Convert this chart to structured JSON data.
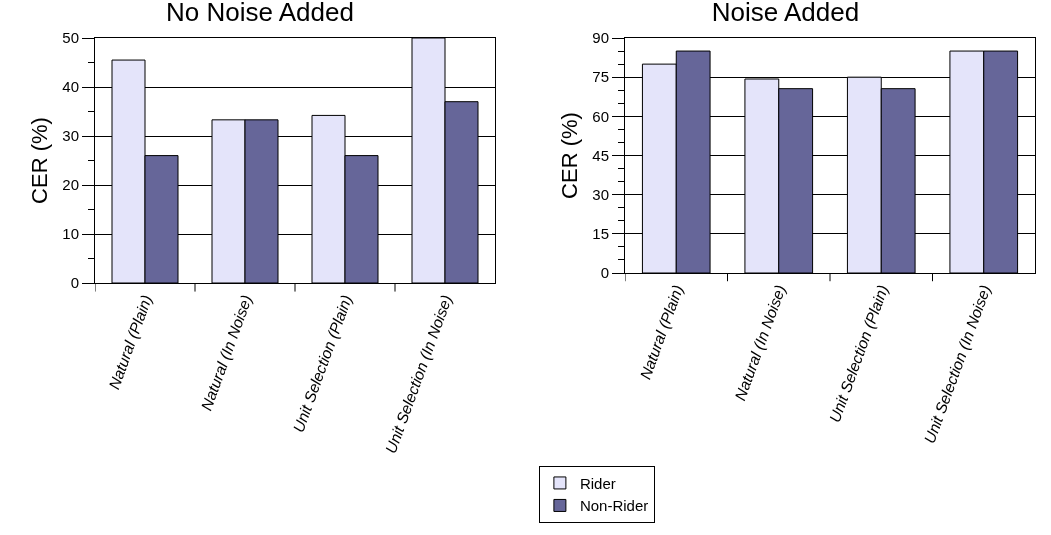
{
  "chart_data": [
    {
      "type": "bar",
      "title": "No Noise Added",
      "ylabel": "CER (%)",
      "categories": [
        "Natural (Plain)",
        "Natural (In Noise)",
        "Unit Selection (Plain)",
        "Unit Selection (In Noise)"
      ],
      "series": [
        {
          "color": "#e4e4fa",
          "values": [
            45.5,
            33.3,
            34.2,
            50
          ]
        },
        {
          "color": "#666699",
          "values": [
            26,
            33.3,
            26,
            37
          ]
        }
      ],
      "ylim": [
        0,
        50
      ],
      "yticks": [
        0,
        {
          "value": 5,
          "label": null
        },
        10,
        {
          "value": 15,
          "label": null
        },
        20,
        {
          "value": 25,
          "label": null
        },
        30,
        {
          "value": 35,
          "label": null
        },
        40,
        {
          "value": 45,
          "label": null
        },
        50
      ],
      "grid": "y"
    },
    {
      "type": "bar",
      "title": "Noise Added",
      "ylabel": "CER (%)",
      "categories": [
        "Natural (Plain)",
        "Natural (In Noise)",
        "Unit Selection (Plain)",
        "Unit Selection (In Noise)"
      ],
      "series": [
        {
          "name": "Rider",
          "color": "#e4e4fa",
          "values": [
            80,
            74.3,
            75,
            85
          ]
        },
        {
          "name": "Non-Rider",
          "color": "#666699",
          "values": [
            85,
            70.6,
            70.6,
            85
          ]
        }
      ],
      "ylim": [
        0,
        90
      ],
      "yticks": [
        0,
        {
          "value": 5,
          "label": null
        },
        {
          "value": 10,
          "label": null
        },
        15,
        {
          "value": 20,
          "label": null
        },
        {
          "value": 25,
          "label": null
        },
        30,
        {
          "value": 35,
          "label": null
        },
        {
          "value": 40,
          "label": null
        },
        45,
        {
          "value": 50,
          "label": null
        },
        {
          "value": 55,
          "label": null
        },
        60,
        {
          "value": 65,
          "label": null
        },
        {
          "value": 70,
          "label": null
        },
        75,
        {
          "value": 80,
          "label": null
        },
        {
          "value": 85,
          "label": null
        },
        90
      ],
      "grid": "y",
      "legend": "bottom left"
    }
  ]
}
